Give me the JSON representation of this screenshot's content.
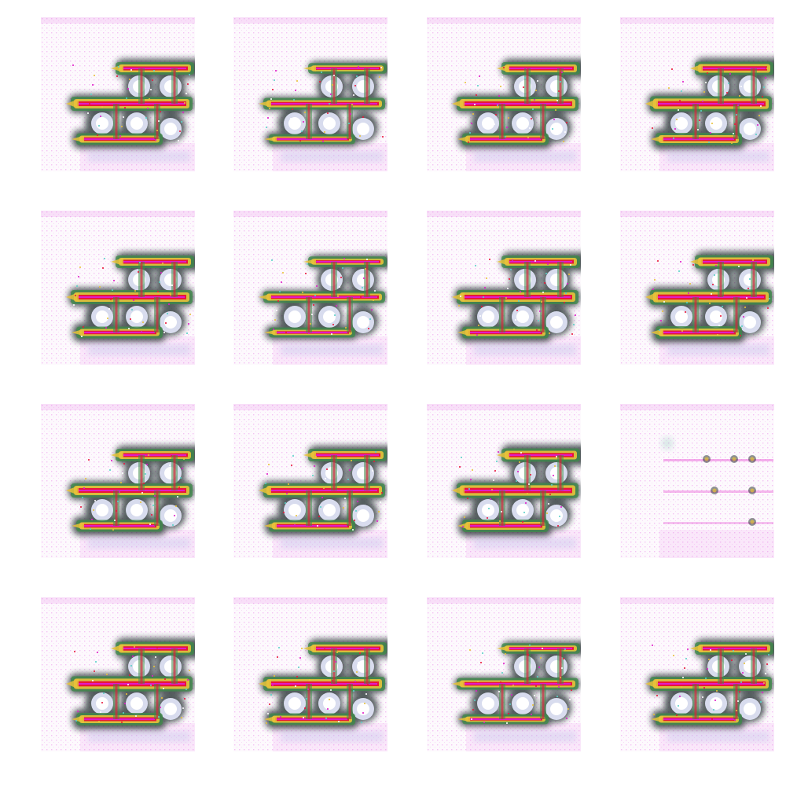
{
  "grid": {
    "rows": 4,
    "columns": 4,
    "samples": [
      {
        "variant": "full"
      },
      {
        "variant": "thin"
      },
      {
        "variant": "full"
      },
      {
        "variant": "dense"
      },
      {
        "variant": "full"
      },
      {
        "variant": "thin"
      },
      {
        "variant": "full"
      },
      {
        "variant": "dense"
      },
      {
        "variant": "full"
      },
      {
        "variant": "full"
      },
      {
        "variant": "dense"
      },
      {
        "variant": "sparse"
      },
      {
        "variant": "dense"
      },
      {
        "variant": "full"
      },
      {
        "variant": "thin"
      },
      {
        "variant": "full"
      }
    ]
  },
  "colors": {
    "background": "#ffffff",
    "tile_background": "#fdf9fd",
    "noise": "#e36be3",
    "core": "#e8163a",
    "magenta": "#e01cc8",
    "yellow": "#e9c23a",
    "green": "#3f8a4a",
    "dark": "#1f2b2a",
    "hole": "#dfe3f5"
  }
}
